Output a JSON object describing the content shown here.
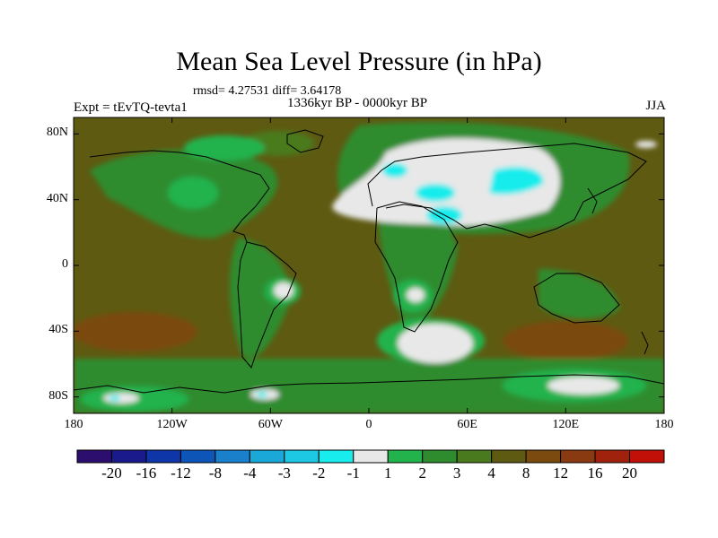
{
  "title": "Mean Sea Level Pressure (in hPa)",
  "stats": "rmsd= 4.27531 diff= 3.64178",
  "period": "1336kyr BP - 0000kyr BP",
  "experiment": "Expt = tEvTQ-tevta1",
  "season": "JJA",
  "axes": {
    "lat_ticks": [
      {
        "label": "80N",
        "lat": 80
      },
      {
        "label": "40N",
        "lat": 40
      },
      {
        "label": "0",
        "lat": 0
      },
      {
        "label": "40S",
        "lat": -40
      },
      {
        "label": "80S",
        "lat": -80
      }
    ],
    "lon_ticks": [
      {
        "label": "180",
        "lon": -180
      },
      {
        "label": "120W",
        "lon": -120
      },
      {
        "label": "60W",
        "lon": -60
      },
      {
        "label": "0",
        "lon": 0
      },
      {
        "label": "60E",
        "lon": 60
      },
      {
        "label": "120E",
        "lon": 120
      },
      {
        "label": "180",
        "lon": 180
      }
    ],
    "lat_range": [
      -90,
      90
    ],
    "lon_range": [
      -180,
      180
    ]
  },
  "colorbar": {
    "colors": [
      "#2b0e6e",
      "#1a1a8c",
      "#0f36a8",
      "#0e55b8",
      "#1a80cc",
      "#19a8d8",
      "#1cc8e3",
      "#18ecec",
      "#e8e8e8",
      "#22b34d",
      "#2e8c2e",
      "#4a7a1e",
      "#5e5a12",
      "#7a4a0e",
      "#8a3a10",
      "#a0220c",
      "#c01008"
    ],
    "labels": [
      "-20",
      "-16",
      "-12",
      "-8",
      "-4",
      "-3",
      "-2",
      "-1",
      "1",
      "2",
      "3",
      "4",
      "8",
      "12",
      "16",
      "20"
    ]
  },
  "colors": {
    "background_field": "#5e5a12",
    "coastline": "#000000"
  }
}
